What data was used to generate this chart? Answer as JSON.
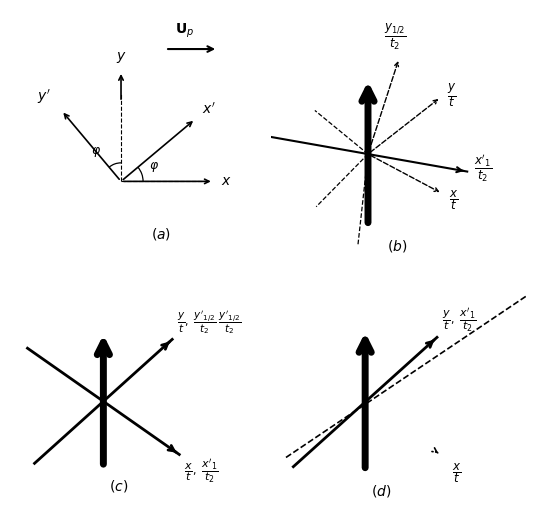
{
  "fig_width": 5.37,
  "fig_height": 5.18,
  "bg_color": "white"
}
